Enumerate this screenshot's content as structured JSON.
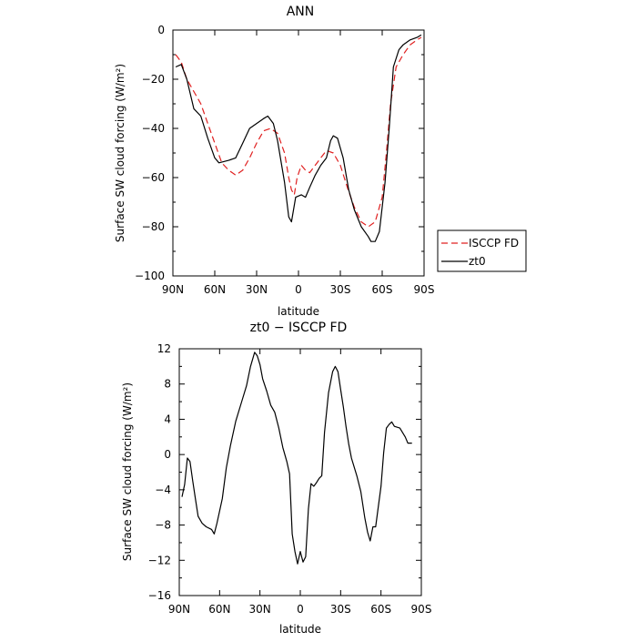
{
  "chart_data": [
    {
      "type": "line",
      "title": "ANN",
      "xlabel": "latitude",
      "ylabel": "Surface SW cloud forcing (W/m²)",
      "xlim": [
        90,
        -90
      ],
      "ylim": [
        -100,
        0
      ],
      "x_tick_values": [
        90,
        60,
        30,
        0,
        -30,
        -60,
        -90
      ],
      "x_tick_labels": [
        "90N",
        "60N",
        "30N",
        "0",
        "30S",
        "60S",
        "90S"
      ],
      "y_tick_values": [
        0,
        -20,
        -40,
        -60,
        -80,
        -100
      ],
      "y_tick_labels": [
        "0",
        "−20",
        "−40",
        "−60",
        "−80",
        "−100"
      ],
      "legend_position": "right, outside plot",
      "series": [
        {
          "name": "ISCCP FD",
          "color": "#e02020",
          "dash": "dashed",
          "points": [
            [
              88,
              -10
            ],
            [
              84,
              -13
            ],
            [
              80,
              -20
            ],
            [
              75,
              -25
            ],
            [
              70,
              -30
            ],
            [
              65,
              -38
            ],
            [
              60,
              -46
            ],
            [
              55,
              -54
            ],
            [
              50,
              -57
            ],
            [
              45,
              -59
            ],
            [
              40,
              -57
            ],
            [
              35,
              -52
            ],
            [
              30,
              -46
            ],
            [
              25,
              -41
            ],
            [
              20,
              -40
            ],
            [
              15,
              -42
            ],
            [
              10,
              -50
            ],
            [
              7,
              -60
            ],
            [
              5,
              -65
            ],
            [
              3,
              -67
            ],
            [
              1,
              -60
            ],
            [
              -2,
              -55
            ],
            [
              -5,
              -57
            ],
            [
              -8,
              -58
            ],
            [
              -12,
              -55
            ],
            [
              -16,
              -52
            ],
            [
              -20,
              -49
            ],
            [
              -25,
              -50
            ],
            [
              -30,
              -55
            ],
            [
              -35,
              -64
            ],
            [
              -40,
              -72
            ],
            [
              -45,
              -78
            ],
            [
              -50,
              -80
            ],
            [
              -55,
              -78
            ],
            [
              -60,
              -68
            ],
            [
              -63,
              -50
            ],
            [
              -66,
              -30
            ],
            [
              -70,
              -15
            ],
            [
              -75,
              -10
            ],
            [
              -80,
              -6
            ],
            [
              -85,
              -4
            ],
            [
              -88,
              -3
            ]
          ]
        },
        {
          "name": "zt0",
          "color": "#000000",
          "dash": "solid",
          "points": [
            [
              88,
              -15
            ],
            [
              84,
              -14
            ],
            [
              80,
              -20
            ],
            [
              75,
              -32
            ],
            [
              70,
              -35
            ],
            [
              65,
              -44
            ],
            [
              60,
              -52
            ],
            [
              57,
              -54
            ],
            [
              50,
              -53
            ],
            [
              45,
              -52
            ],
            [
              40,
              -46
            ],
            [
              35,
              -40
            ],
            [
              30,
              -38
            ],
            [
              25,
              -36
            ],
            [
              22,
              -35
            ],
            [
              18,
              -38
            ],
            [
              15,
              -45
            ],
            [
              10,
              -62
            ],
            [
              7,
              -76
            ],
            [
              5,
              -78
            ],
            [
              2,
              -68
            ],
            [
              -2,
              -67
            ],
            [
              -5,
              -68
            ],
            [
              -8,
              -64
            ],
            [
              -12,
              -59
            ],
            [
              -16,
              -55
            ],
            [
              -20,
              -52
            ],
            [
              -23,
              -45
            ],
            [
              -25,
              -43
            ],
            [
              -28,
              -44
            ],
            [
              -32,
              -52
            ],
            [
              -36,
              -65
            ],
            [
              -40,
              -73
            ],
            [
              -45,
              -80
            ],
            [
              -50,
              -84
            ],
            [
              -52,
              -86
            ],
            [
              -55,
              -86
            ],
            [
              -58,
              -82
            ],
            [
              -62,
              -62
            ],
            [
              -65,
              -40
            ],
            [
              -68,
              -15
            ],
            [
              -72,
              -8
            ],
            [
              -75,
              -6
            ],
            [
              -80,
              -4
            ],
            [
              -85,
              -3
            ],
            [
              -88,
              -2
            ]
          ]
        }
      ]
    },
    {
      "type": "line",
      "title": "zt0 − ISCCP FD",
      "xlabel": "latitude",
      "ylabel": "Surface SW cloud forcing (W/m²)",
      "xlim": [
        90,
        -90
      ],
      "ylim": [
        -16,
        12
      ],
      "x_tick_values": [
        90,
        60,
        30,
        0,
        -30,
        -60,
        -90
      ],
      "x_tick_labels": [
        "90N",
        "60N",
        "30N",
        "0",
        "30S",
        "60S",
        "90S"
      ],
      "y_tick_values": [
        12,
        8,
        4,
        0,
        -4,
        -8,
        -12,
        -16
      ],
      "y_tick_labels": [
        "12",
        "8",
        "4",
        "0",
        "−4",
        "−8",
        "−12",
        "−16"
      ],
      "series": [
        {
          "color": "#000000",
          "dash": "solid",
          "points": [
            [
              88,
              -4.8
            ],
            [
              86,
              -3.4
            ],
            [
              84,
              -0.4
            ],
            [
              82,
              -0.8
            ],
            [
              80,
              -3
            ],
            [
              78,
              -5
            ],
            [
              76,
              -7
            ],
            [
              73,
              -7.8
            ],
            [
              70,
              -8.2
            ],
            [
              66,
              -8.5
            ],
            [
              64,
              -9
            ],
            [
              62,
              -7.8
            ],
            [
              58,
              -5
            ],
            [
              55,
              -1.5
            ],
            [
              52,
              1
            ],
            [
              48,
              3.8
            ],
            [
              44,
              5.8
            ],
            [
              40,
              7.8
            ],
            [
              37,
              10
            ],
            [
              34,
              11.6
            ],
            [
              32,
              11.2
            ],
            [
              30,
              10.2
            ],
            [
              28,
              8.6
            ],
            [
              25,
              7.2
            ],
            [
              22,
              5.6
            ],
            [
              19,
              4.8
            ],
            [
              16,
              3
            ],
            [
              13,
              0.8
            ],
            [
              10,
              -0.8
            ],
            [
              8,
              -2.2
            ],
            [
              6,
              -9
            ],
            [
              4,
              -11
            ],
            [
              2,
              -12.4
            ],
            [
              0,
              -11
            ],
            [
              -2,
              -12.2
            ],
            [
              -4,
              -11.6
            ],
            [
              -6,
              -6.2
            ],
            [
              -8,
              -3.3
            ],
            [
              -10,
              -3.6
            ],
            [
              -12,
              -3.2
            ],
            [
              -14,
              -2.7
            ],
            [
              -16,
              -2.4
            ],
            [
              -18,
              2.5
            ],
            [
              -21,
              7
            ],
            [
              -24,
              9.4
            ],
            [
              -26,
              10
            ],
            [
              -28,
              9.4
            ],
            [
              -30,
              7.4
            ],
            [
              -32,
              5.4
            ],
            [
              -34,
              3.2
            ],
            [
              -36,
              1.2
            ],
            [
              -38,
              -0.4
            ],
            [
              -42,
              -2.4
            ],
            [
              -45,
              -4.2
            ],
            [
              -48,
              -7.2
            ],
            [
              -50,
              -8.8
            ],
            [
              -52,
              -9.8
            ],
            [
              -54,
              -8.2
            ],
            [
              -56,
              -8.2
            ],
            [
              -60,
              -3.6
            ],
            [
              -62,
              0.2
            ],
            [
              -64,
              3
            ],
            [
              -66,
              3.4
            ],
            [
              -68,
              3.7
            ],
            [
              -70,
              3.2
            ],
            [
              -74,
              3
            ],
            [
              -78,
              2
            ],
            [
              -80,
              1.3
            ],
            [
              -83,
              1.3
            ]
          ]
        }
      ]
    }
  ]
}
